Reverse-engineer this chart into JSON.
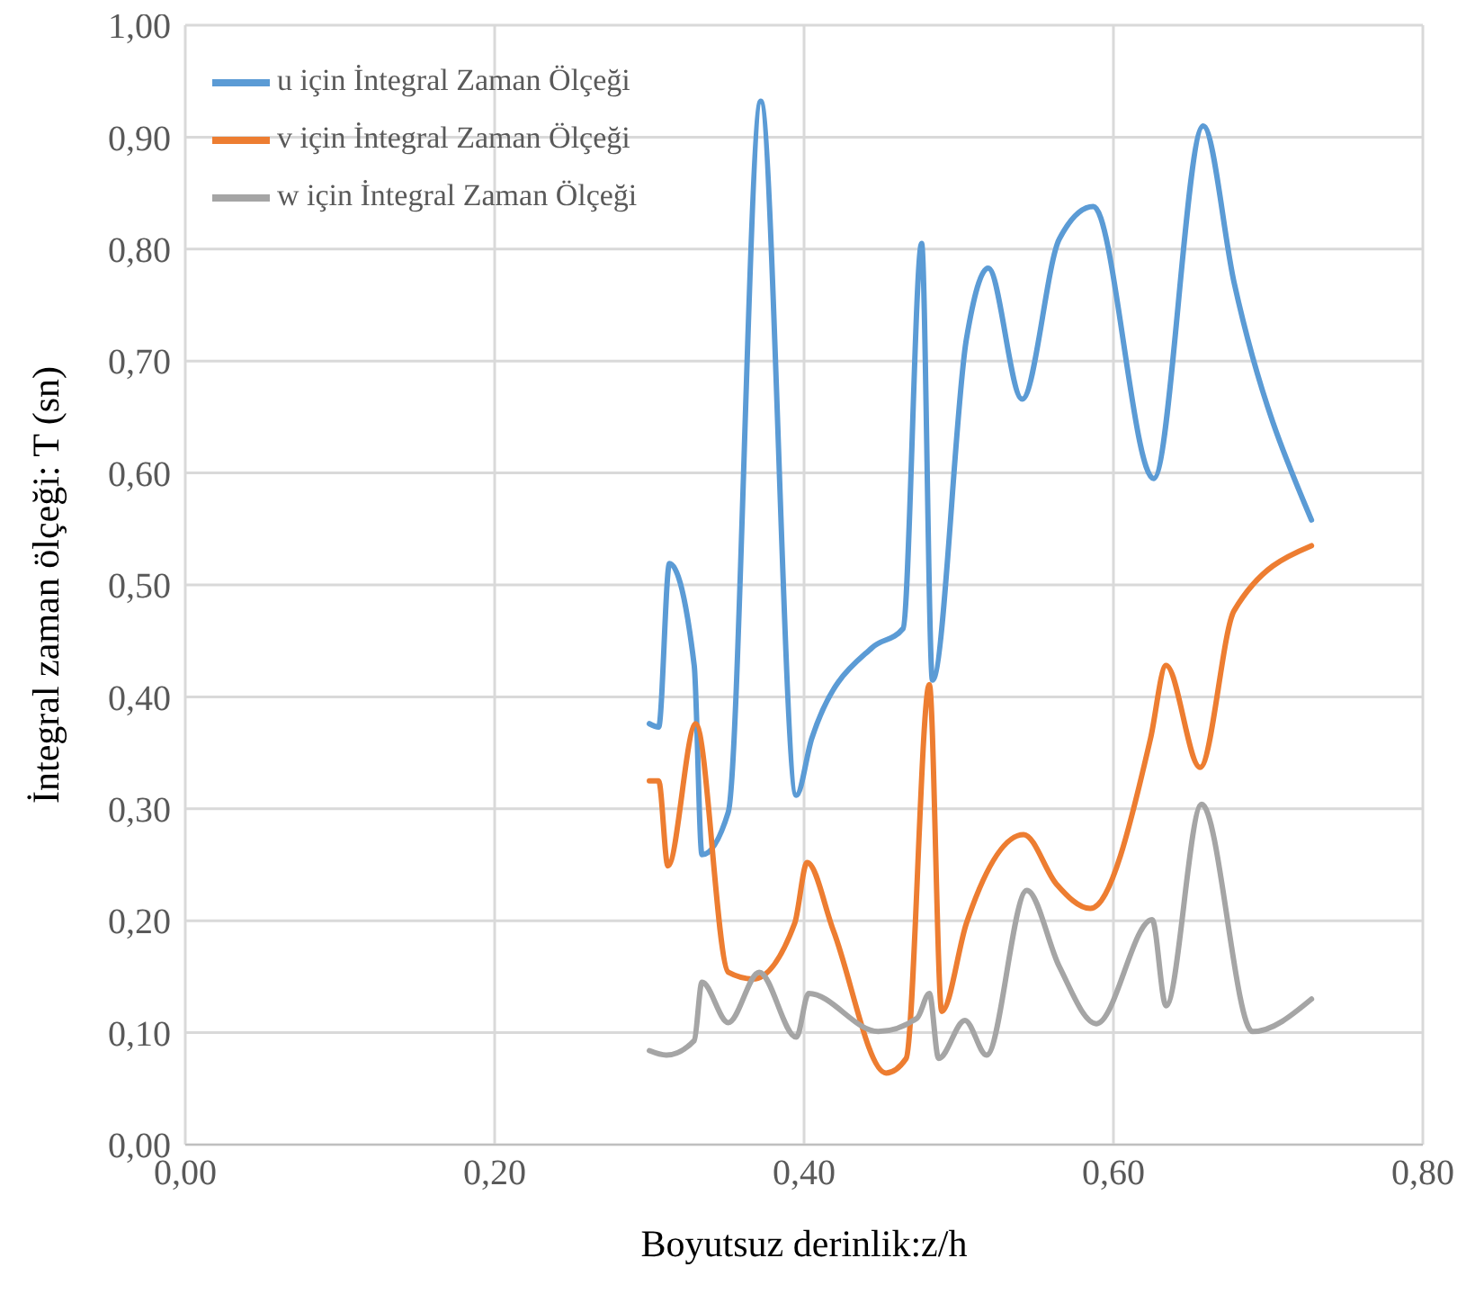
{
  "chart_data": {
    "type": "line",
    "xlabel": "Boyutsuz derinlik:z/h",
    "ylabel": "İntegral zaman ölçeği: T (sn)",
    "xlim": [
      0,
      0.8
    ],
    "xticks": [
      {
        "value": 0,
        "label": "0,00"
      },
      {
        "value": 0.2,
        "label": "0,20"
      },
      {
        "value": 0.4,
        "label": "0,40"
      },
      {
        "value": 0.6,
        "label": "0,60"
      },
      {
        "value": 0.8,
        "label": "0,80"
      }
    ],
    "ylim": [
      0,
      1
    ],
    "yticks": [
      {
        "value": 0,
        "label": "0,00"
      },
      {
        "value": 0.1,
        "label": "0,10"
      },
      {
        "value": 0.2,
        "label": "0,20"
      },
      {
        "value": 0.3,
        "label": "0,30"
      },
      {
        "value": 0.4,
        "label": "0,40"
      },
      {
        "value": 0.5,
        "label": "0,50"
      },
      {
        "value": 0.6,
        "label": "0,60"
      },
      {
        "value": 0.7,
        "label": "0,70"
      },
      {
        "value": 0.8,
        "label": "0,80"
      },
      {
        "value": 0.9,
        "label": "0,90"
      },
      {
        "value": 1,
        "label": "1,00"
      }
    ],
    "grid": true,
    "legend": "top left",
    "series": [
      {
        "name": "u için İntegral Zaman Ölçeği",
        "color": "#5b9bd5",
        "x": [
          0.3,
          0.306,
          0.313,
          0.329,
          0.334,
          0.351,
          0.372,
          0.395,
          0.405,
          0.444,
          0.464,
          0.476,
          0.483,
          0.505,
          0.519,
          0.541,
          0.565,
          0.587,
          0.626,
          0.658,
          0.678,
          0.728
        ],
        "values": [
          0.376,
          0.373,
          0.519,
          0.428,
          0.259,
          0.297,
          0.932,
          0.312,
          0.363,
          0.444,
          0.461,
          0.805,
          0.415,
          0.72,
          0.783,
          0.666,
          0.809,
          0.838,
          0.595,
          0.91,
          0.77,
          0.558
        ]
      },
      {
        "name": "v için İntegral Zaman Ölçeği",
        "color": "#ed7d31",
        "x": [
          0.3,
          0.306,
          0.312,
          0.33,
          0.351,
          0.367,
          0.394,
          0.402,
          0.419,
          0.453,
          0.466,
          0.481,
          0.489,
          0.505,
          0.542,
          0.563,
          0.585,
          0.624,
          0.634,
          0.656,
          0.678,
          0.728
        ],
        "values": [
          0.325,
          0.325,
          0.249,
          0.376,
          0.154,
          0.148,
          0.198,
          0.252,
          0.191,
          0.064,
          0.077,
          0.411,
          0.119,
          0.198,
          0.277,
          0.233,
          0.211,
          0.363,
          0.428,
          0.337,
          0.477,
          0.535
        ]
      },
      {
        "name": "w için İntegral Zaman Ölçeği",
        "color": "#a5a5a5",
        "x": [
          0.3,
          0.311,
          0.329,
          0.334,
          0.351,
          0.371,
          0.395,
          0.403,
          0.448,
          0.473,
          0.481,
          0.487,
          0.504,
          0.518,
          0.544,
          0.565,
          0.589,
          0.625,
          0.634,
          0.657,
          0.69,
          0.728
        ],
        "values": [
          0.084,
          0.08,
          0.093,
          0.145,
          0.109,
          0.154,
          0.096,
          0.135,
          0.101,
          0.113,
          0.135,
          0.077,
          0.111,
          0.08,
          0.227,
          0.159,
          0.108,
          0.201,
          0.124,
          0.304,
          0.101,
          0.13
        ]
      }
    ]
  }
}
